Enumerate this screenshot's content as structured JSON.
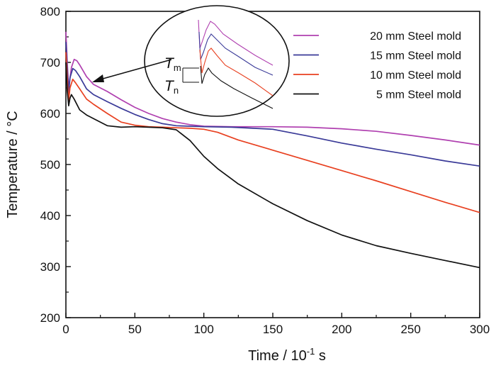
{
  "chart_data": {
    "type": "line",
    "xlabel_main": "Time / 10",
    "xlabel_exp": "-1",
    "xlabel_unit": " s",
    "ylabel": "Temperature / °C",
    "xlim": [
      0,
      300
    ],
    "ylim": [
      200,
      800
    ],
    "xticks": [
      "0",
      "50",
      "100",
      "150",
      "200",
      "250",
      "300"
    ],
    "yticks": [
      "200",
      "300",
      "400",
      "500",
      "600",
      "700",
      "800"
    ],
    "grid": false,
    "legend_position": "top-right",
    "series": [
      {
        "name": "20 mm Steel mold",
        "color": "#b040b0",
        "x": [
          0,
          1,
          2,
          4,
          6,
          8,
          10,
          15,
          20,
          30,
          40,
          50,
          60,
          70,
          80,
          90,
          100,
          120,
          150,
          175,
          200,
          225,
          250,
          275,
          300
        ],
        "y": [
          760,
          700,
          650,
          690,
          706,
          703,
          695,
          672,
          657,
          643,
          627,
          612,
          600,
          590,
          583,
          578,
          575,
          574,
          574,
          573,
          570,
          565,
          557,
          548,
          538
        ]
      },
      {
        "name": "15 mm Steel mold",
        "color": "#3a3a98",
        "x": [
          0,
          1,
          2,
          3,
          5,
          7,
          10,
          15,
          20,
          30,
          40,
          50,
          60,
          70,
          80,
          90,
          100,
          120,
          150,
          175,
          200,
          225,
          250,
          275,
          300
        ],
        "y": [
          740,
          690,
          640,
          670,
          688,
          684,
          672,
          648,
          637,
          623,
          610,
          598,
          588,
          580,
          576,
          575,
          574,
          573,
          569,
          556,
          542,
          530,
          519,
          507,
          497
        ]
      },
      {
        "name": "10 mm Steel mold",
        "color": "#e84020",
        "x": [
          0,
          1,
          2,
          3,
          5,
          7,
          10,
          15,
          20,
          30,
          40,
          50,
          60,
          70,
          80,
          90,
          100,
          110,
          125,
          150,
          175,
          200,
          225,
          250,
          275,
          300
        ],
        "y": [
          720,
          670,
          625,
          650,
          667,
          660,
          648,
          628,
          618,
          600,
          583,
          577,
          574,
          573,
          572,
          571,
          569,
          563,
          548,
          528,
          508,
          488,
          468,
          447,
          426,
          406
        ]
      },
      {
        "name": "5 mm Steel mold",
        "color": "#111111",
        "x": [
          0,
          1,
          2,
          3,
          4,
          6,
          10,
          15,
          20,
          30,
          40,
          50,
          60,
          70,
          80,
          90,
          100,
          110,
          125,
          150,
          175,
          200,
          225,
          250,
          275,
          300
        ],
        "y": [
          700,
          645,
          615,
          630,
          637,
          628,
          607,
          597,
          590,
          576,
          573,
          574,
          573,
          572,
          568,
          547,
          516,
          492,
          462,
          423,
          390,
          362,
          341,
          326,
          312,
          298
        ]
      }
    ],
    "inset": {
      "labels": [
        {
          "main": "T",
          "sub": "m"
        },
        {
          "main": "T",
          "sub": "n"
        }
      ]
    }
  }
}
